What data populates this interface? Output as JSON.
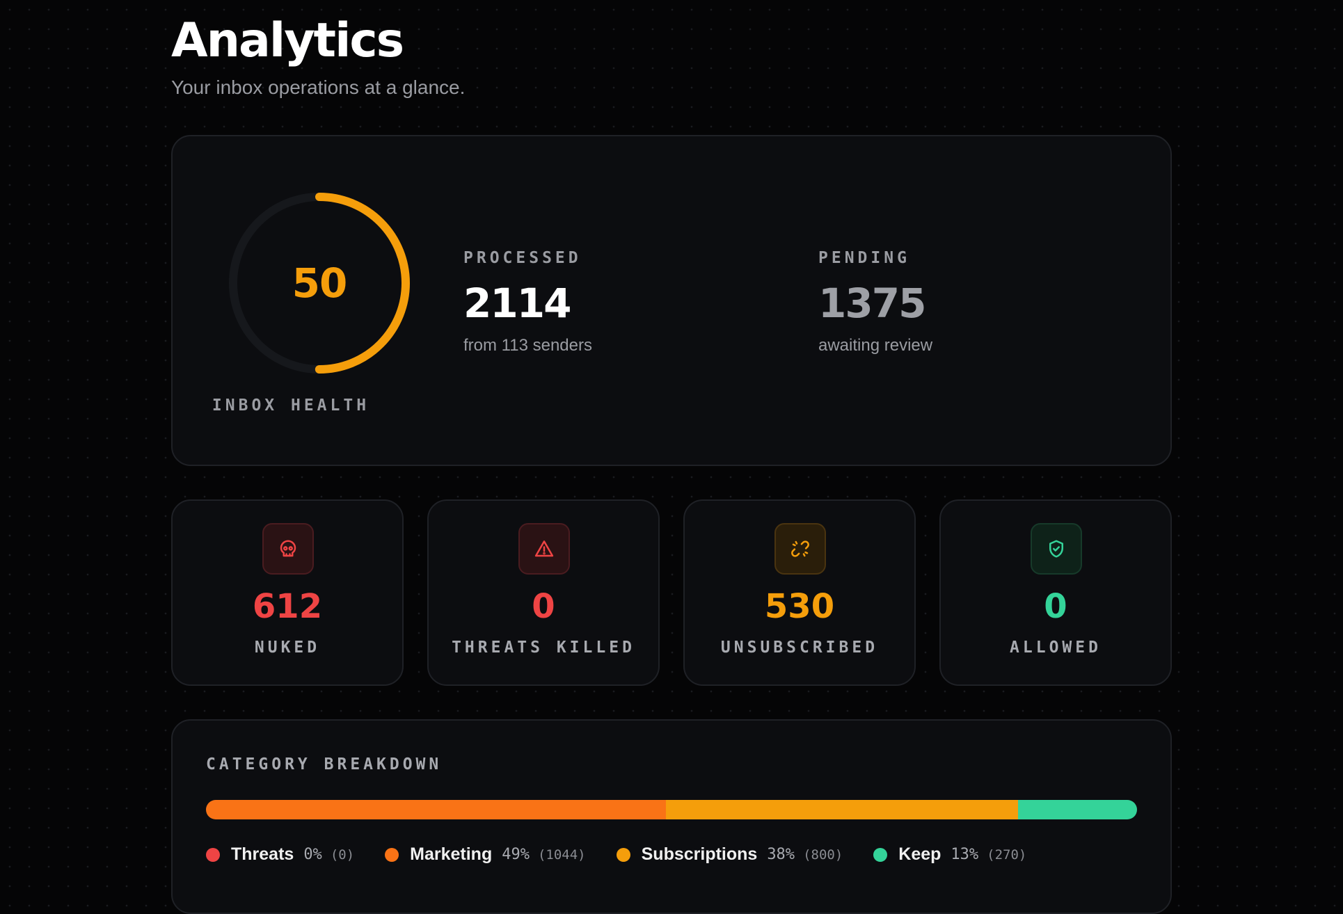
{
  "header": {
    "title": "Analytics",
    "subtitle": "Your inbox operations at a glance."
  },
  "health": {
    "score": 50,
    "score_text": "50",
    "label": "INBOX HEALTH",
    "max": 100,
    "color": "#f59e0b"
  },
  "processed": {
    "label": "PROCESSED",
    "value": "2114",
    "sub": "from 113 senders",
    "color": "#ffffff"
  },
  "pending": {
    "label": "PENDING",
    "value": "1375",
    "sub": "awaiting review",
    "color": "#9ea0a6"
  },
  "cards": [
    {
      "icon": "skull-icon",
      "value": "612",
      "label": "NUKED",
      "color": "#ef4444",
      "icon_bg": "#2a1214",
      "icon_border": "#4a1c20"
    },
    {
      "icon": "warning-icon",
      "value": "0",
      "label": "THREATS KILLED",
      "color": "#ef4444",
      "icon_bg": "#2a1214",
      "icon_border": "#4a1c20"
    },
    {
      "icon": "broken-link-icon",
      "value": "530",
      "label": "UNSUBSCRIBED",
      "color": "#f59e0b",
      "icon_bg": "#2a1e0a",
      "icon_border": "#4a3410"
    },
    {
      "icon": "shield-check-icon",
      "value": "0",
      "label": "ALLOWED",
      "color": "#34d399",
      "icon_bg": "#0e2219",
      "icon_border": "#173a2a"
    }
  ],
  "breakdown": {
    "title": "CATEGORY BREAKDOWN",
    "categories": [
      {
        "name": "Threats",
        "percent": "0%",
        "count": "(0)",
        "value": 0,
        "color": "#ef4444"
      },
      {
        "name": "Marketing",
        "percent": "49%",
        "count": "(1044)",
        "value": 1044,
        "color": "#f97316"
      },
      {
        "name": "Subscriptions",
        "percent": "38%",
        "count": "(800)",
        "value": 800,
        "color": "#f59e0b"
      },
      {
        "name": "Keep",
        "percent": "13%",
        "count": "(270)",
        "value": 270,
        "color": "#34d399"
      }
    ]
  }
}
